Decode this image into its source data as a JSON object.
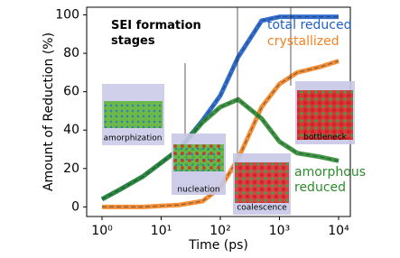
{
  "chart_data": {
    "type": "line",
    "title": "SEI formation stages",
    "x_label": "Time (ps)",
    "y_label": "Amount of Reduction (%)",
    "log_x": true,
    "xlim": [
      0.55,
      15800
    ],
    "xticks": [
      {
        "value": 1,
        "label": "10⁰"
      },
      {
        "value": 10,
        "label": "10¹"
      },
      {
        "value": 100,
        "label": "10²"
      },
      {
        "value": 1000,
        "label": "10³"
      },
      {
        "value": 10000,
        "label": "10⁴"
      }
    ],
    "ylim": [
      -5,
      104
    ],
    "yticks": [
      0,
      20,
      40,
      60,
      80,
      100
    ],
    "x": [
      1,
      2,
      5,
      10,
      20,
      50,
      100,
      200,
      500,
      1000,
      2000,
      5000,
      10000
    ],
    "series": [
      {
        "name": "total reduced",
        "color": "#1f5fc8",
        "values": [
          4,
          9,
          16,
          23,
          30,
          45,
          58,
          78,
          97,
          99,
          99,
          99,
          99
        ]
      },
      {
        "name": "crystallized",
        "color": "#f58220",
        "values": [
          0,
          0,
          0,
          0.5,
          1,
          3,
          10,
          25,
          52,
          64,
          70,
          73,
          76
        ]
      },
      {
        "name": "amorphous reduced",
        "color": "#2e8b2e",
        "values": [
          4,
          9,
          16,
          23,
          30,
          44,
          52,
          56,
          46,
          34,
          28,
          26,
          24
        ]
      }
    ],
    "stages": [
      "amorphization",
      "nucleation",
      "coalescence",
      "bottleneck"
    ]
  }
}
